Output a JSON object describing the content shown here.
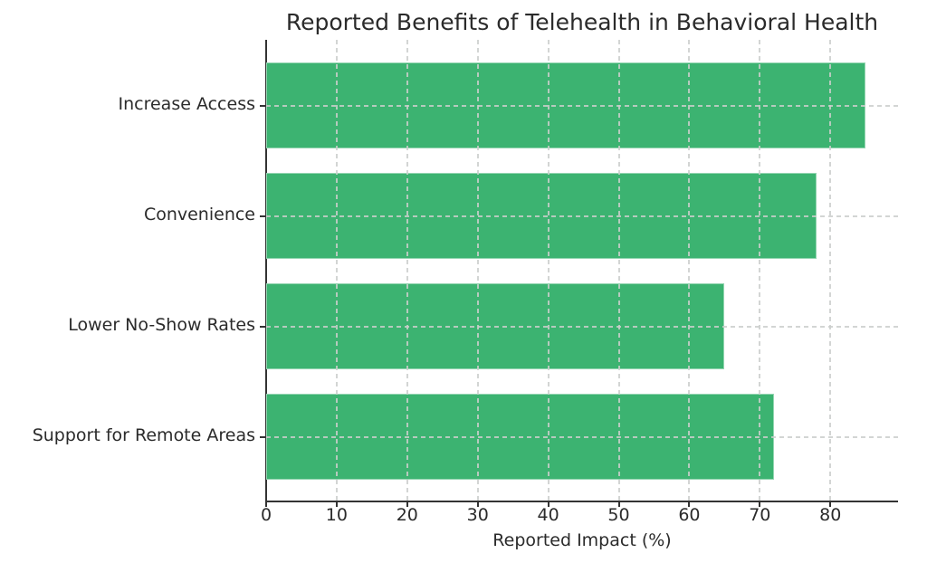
{
  "chart_data": {
    "type": "bar",
    "orientation": "horizontal",
    "title": "Reported Benefits of Telehealth in Behavioral Health",
    "xlabel": "Reported Impact (%)",
    "ylabel": "",
    "categories": [
      "Increase Access",
      "Convenience",
      "Lower No-Show Rates",
      "Support for Remote Areas"
    ],
    "values": [
      85,
      78,
      65,
      72
    ],
    "xticks": [
      0,
      10,
      20,
      30,
      40,
      50,
      60,
      70,
      80
    ],
    "xlim": [
      0,
      89.6
    ],
    "grid": "dashed",
    "legend": "none",
    "bar_color": "#3cb371",
    "grid_color": "#cccccc",
    "spine_color": "#333333",
    "text_color": "#2b2b2b"
  }
}
